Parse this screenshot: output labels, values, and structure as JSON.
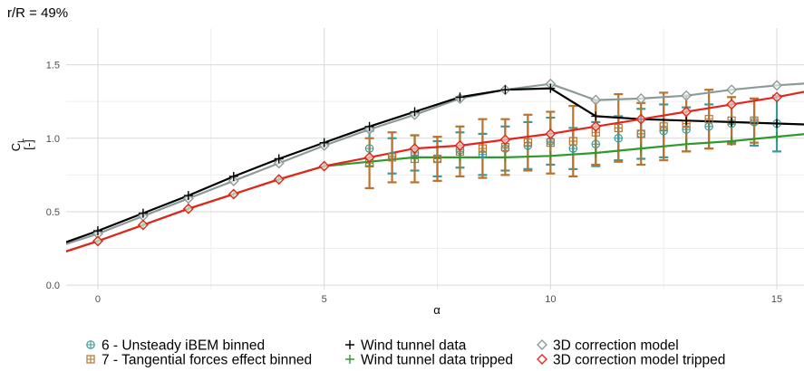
{
  "chart_data": {
    "type": "line",
    "title": "r/R = 49%",
    "xlabel": "α",
    "ylabel_main": "C",
    "ylabel_sub": "L",
    "ylabel_unit": "[-]",
    "xlim": [
      -0.7,
      15.6
    ],
    "ylim": [
      -0.03,
      1.75
    ],
    "xticks": [
      0,
      5,
      10,
      15
    ],
    "yticks": [
      0.0,
      0.5,
      1.0,
      1.5
    ],
    "ytick_labels": [
      "0.0",
      "0.5",
      "1.0",
      "1.5"
    ],
    "grid": true,
    "legend_position": "bottom",
    "series": [
      {
        "name": "Wind tunnel data",
        "kind": "line",
        "marker": "plus",
        "color": "#000000",
        "x": [
          -1,
          0,
          1,
          2,
          3,
          4,
          5,
          6,
          7,
          8,
          9,
          10,
          11,
          12,
          13,
          14,
          15,
          16
        ],
        "y": [
          0.26,
          0.37,
          0.49,
          0.61,
          0.74,
          0.86,
          0.97,
          1.08,
          1.18,
          1.28,
          1.33,
          1.34,
          1.15,
          1.13,
          1.12,
          1.11,
          1.1,
          1.09
        ]
      },
      {
        "name": "Wind tunnel data tripped",
        "kind": "line",
        "marker": "plus",
        "color": "#2e9a2e",
        "x": [
          -1,
          0,
          1,
          2,
          3,
          4,
          5,
          6,
          7,
          8,
          9,
          10,
          11,
          12,
          13,
          14,
          15,
          16
        ],
        "y": [
          0.2,
          0.3,
          0.41,
          0.52,
          0.62,
          0.72,
          0.81,
          0.84,
          0.87,
          0.87,
          0.87,
          0.88,
          0.9,
          0.93,
          0.96,
          0.98,
          1.01,
          1.04
        ]
      },
      {
        "name": "3D correction model",
        "kind": "line",
        "marker": "diamond",
        "color": "#8c9a9a",
        "x": [
          -1,
          0,
          1,
          2,
          3,
          4,
          5,
          6,
          7,
          8,
          9,
          10,
          11,
          12,
          13,
          14,
          15,
          16
        ],
        "y": [
          0.25,
          0.35,
          0.47,
          0.59,
          0.71,
          0.83,
          0.95,
          1.06,
          1.16,
          1.27,
          1.33,
          1.37,
          1.26,
          1.27,
          1.29,
          1.33,
          1.36,
          1.38
        ]
      },
      {
        "name": "3D correction model tripped",
        "kind": "line",
        "marker": "diamond",
        "color": "#e3261b",
        "x": [
          -1,
          0,
          1,
          2,
          3,
          4,
          5,
          6,
          7,
          8,
          9,
          10,
          11,
          12,
          13,
          14,
          15,
          16
        ],
        "y": [
          0.2,
          0.3,
          0.41,
          0.52,
          0.62,
          0.72,
          0.81,
          0.87,
          0.93,
          0.95,
          0.99,
          1.03,
          1.08,
          1.13,
          1.18,
          1.23,
          1.28,
          1.34
        ]
      },
      {
        "name": "6 - Unsteady iBEM binned",
        "kind": "errorbar",
        "marker": "circle-plus",
        "color": "#3a9a9a",
        "x": [
          6,
          6.5,
          7,
          7.5,
          8,
          8.5,
          9,
          9.5,
          10,
          10.5,
          11,
          11.5,
          12,
          12.5,
          13,
          13.5,
          14,
          14.5,
          15
        ],
        "y": [
          0.93,
          0.88,
          0.9,
          0.86,
          0.92,
          0.89,
          0.93,
          0.95,
          0.98,
          0.93,
          0.96,
          1.0,
          1.03,
          1.05,
          1.06,
          1.08,
          1.1,
          1.11,
          1.1
        ],
        "err": [
          0.12,
          0.12,
          0.12,
          0.12,
          0.12,
          0.14,
          0.15,
          0.16,
          0.16,
          0.14,
          0.15,
          0.15,
          0.17,
          0.18,
          0.15,
          0.15,
          0.13,
          0.16,
          0.19
        ]
      },
      {
        "name": "7 - Tangential forces effect binned",
        "kind": "errorbar",
        "marker": "square-plus",
        "color": "#b8742e",
        "x": [
          6,
          6.5,
          7,
          7.5,
          8,
          8.5,
          9,
          9.5,
          10,
          10.5,
          11,
          11.5,
          12,
          12.5,
          13,
          13.5,
          14,
          14.5
        ],
        "y": [
          0.83,
          0.87,
          0.86,
          0.86,
          0.91,
          0.93,
          0.94,
          0.97,
          0.97,
          0.98,
          1.04,
          1.07,
          1.03,
          1.08,
          1.1,
          1.13,
          1.12,
          1.12
        ],
        "err": [
          0.17,
          0.17,
          0.16,
          0.15,
          0.17,
          0.2,
          0.19,
          0.19,
          0.21,
          0.24,
          0.22,
          0.23,
          0.21,
          0.23,
          0.19,
          0.2,
          0.16,
          0.15
        ]
      }
    ]
  },
  "legend": {
    "rows": [
      [
        {
          "label": "6 - Unsteady iBEM binned",
          "symbol": "circle-plus",
          "color": "#3a9a9a"
        },
        {
          "label": "Wind tunnel data",
          "symbol": "plus",
          "color": "#000000"
        },
        {
          "label": "3D correction model",
          "symbol": "diamond",
          "color": "#8c9a9a"
        }
      ],
      [
        {
          "label": "7 - Tangential forces effect binned",
          "symbol": "square-plus",
          "color": "#b8742e"
        },
        {
          "label": "Wind tunnel data tripped",
          "symbol": "plus",
          "color": "#2e9a2e"
        },
        {
          "label": "3D correction model tripped",
          "symbol": "diamond",
          "color": "#e3261b"
        }
      ]
    ]
  }
}
